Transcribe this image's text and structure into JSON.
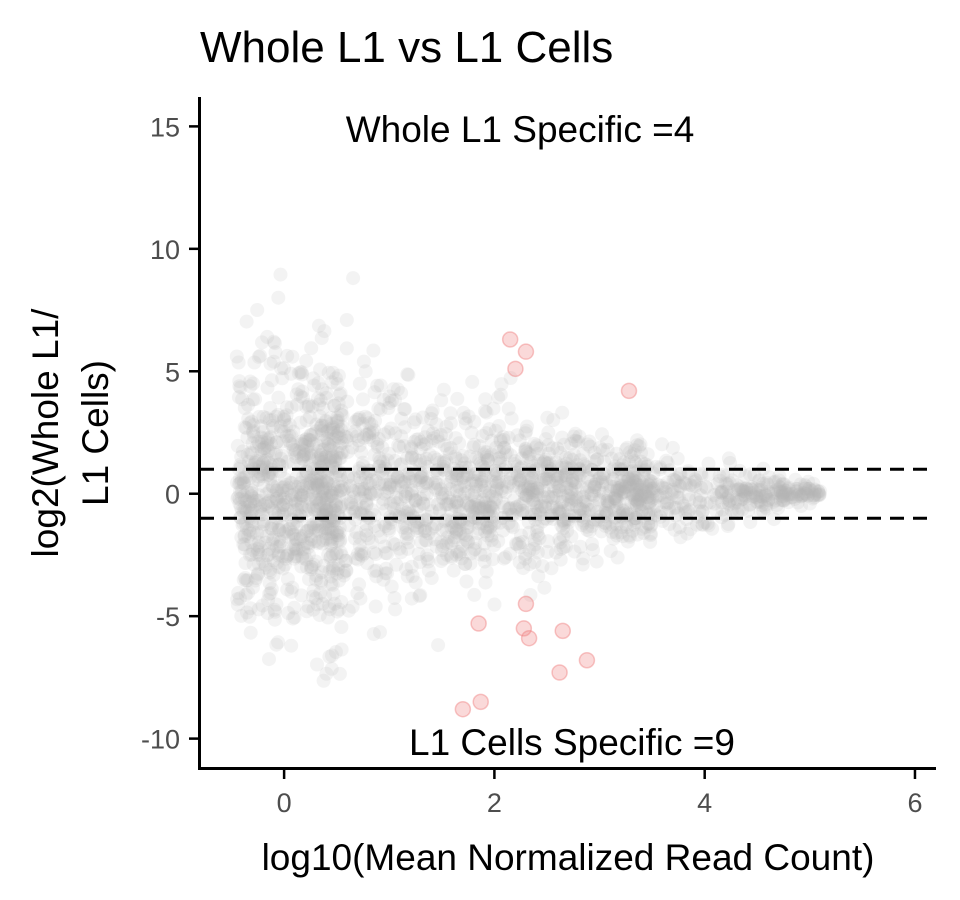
{
  "chart_data": {
    "type": "scatter",
    "title": "Whole L1 vs L1 Cells",
    "xlabel": "log10(Mean Normalized Read Count)",
    "ylabel_lines": [
      "log2(Whole L1/",
      "L1 Cells)"
    ],
    "xlim": [
      -0.8,
      6.2
    ],
    "ylim": [
      -11.2,
      16.2
    ],
    "x_ticks": [
      0,
      2,
      4,
      6
    ],
    "y_ticks": [
      -10,
      -5,
      0,
      5,
      10,
      15
    ],
    "grid": false,
    "legend": "none",
    "threshold_lines": [
      1,
      -1
    ],
    "annotations": [
      {
        "text": "Whole L1 Specific =4",
        "x": 2.2,
        "y": 14.5
      },
      {
        "text": "L1 Cells Specific =9",
        "x": 2.8,
        "y": -10.2
      }
    ],
    "colors": {
      "background_points": "#b3b3b3",
      "significant_points": "#f08080",
      "axis": "#000000",
      "threshold": "#000000"
    },
    "series": [
      {
        "role": "background",
        "description_note": "",
        "points": []
      },
      {
        "role": "significant",
        "points": [
          [
            2.15,
            6.3
          ],
          [
            2.3,
            5.8
          ],
          [
            2.2,
            5.1
          ],
          [
            3.28,
            4.2
          ],
          [
            2.3,
            -4.5
          ],
          [
            1.85,
            -5.3
          ],
          [
            2.28,
            -5.5
          ],
          [
            2.33,
            -5.9
          ],
          [
            2.65,
            -5.6
          ],
          [
            2.62,
            -7.3
          ],
          [
            2.88,
            -6.8
          ],
          [
            1.87,
            -8.5
          ],
          [
            1.7,
            -8.8
          ]
        ]
      }
    ]
  }
}
